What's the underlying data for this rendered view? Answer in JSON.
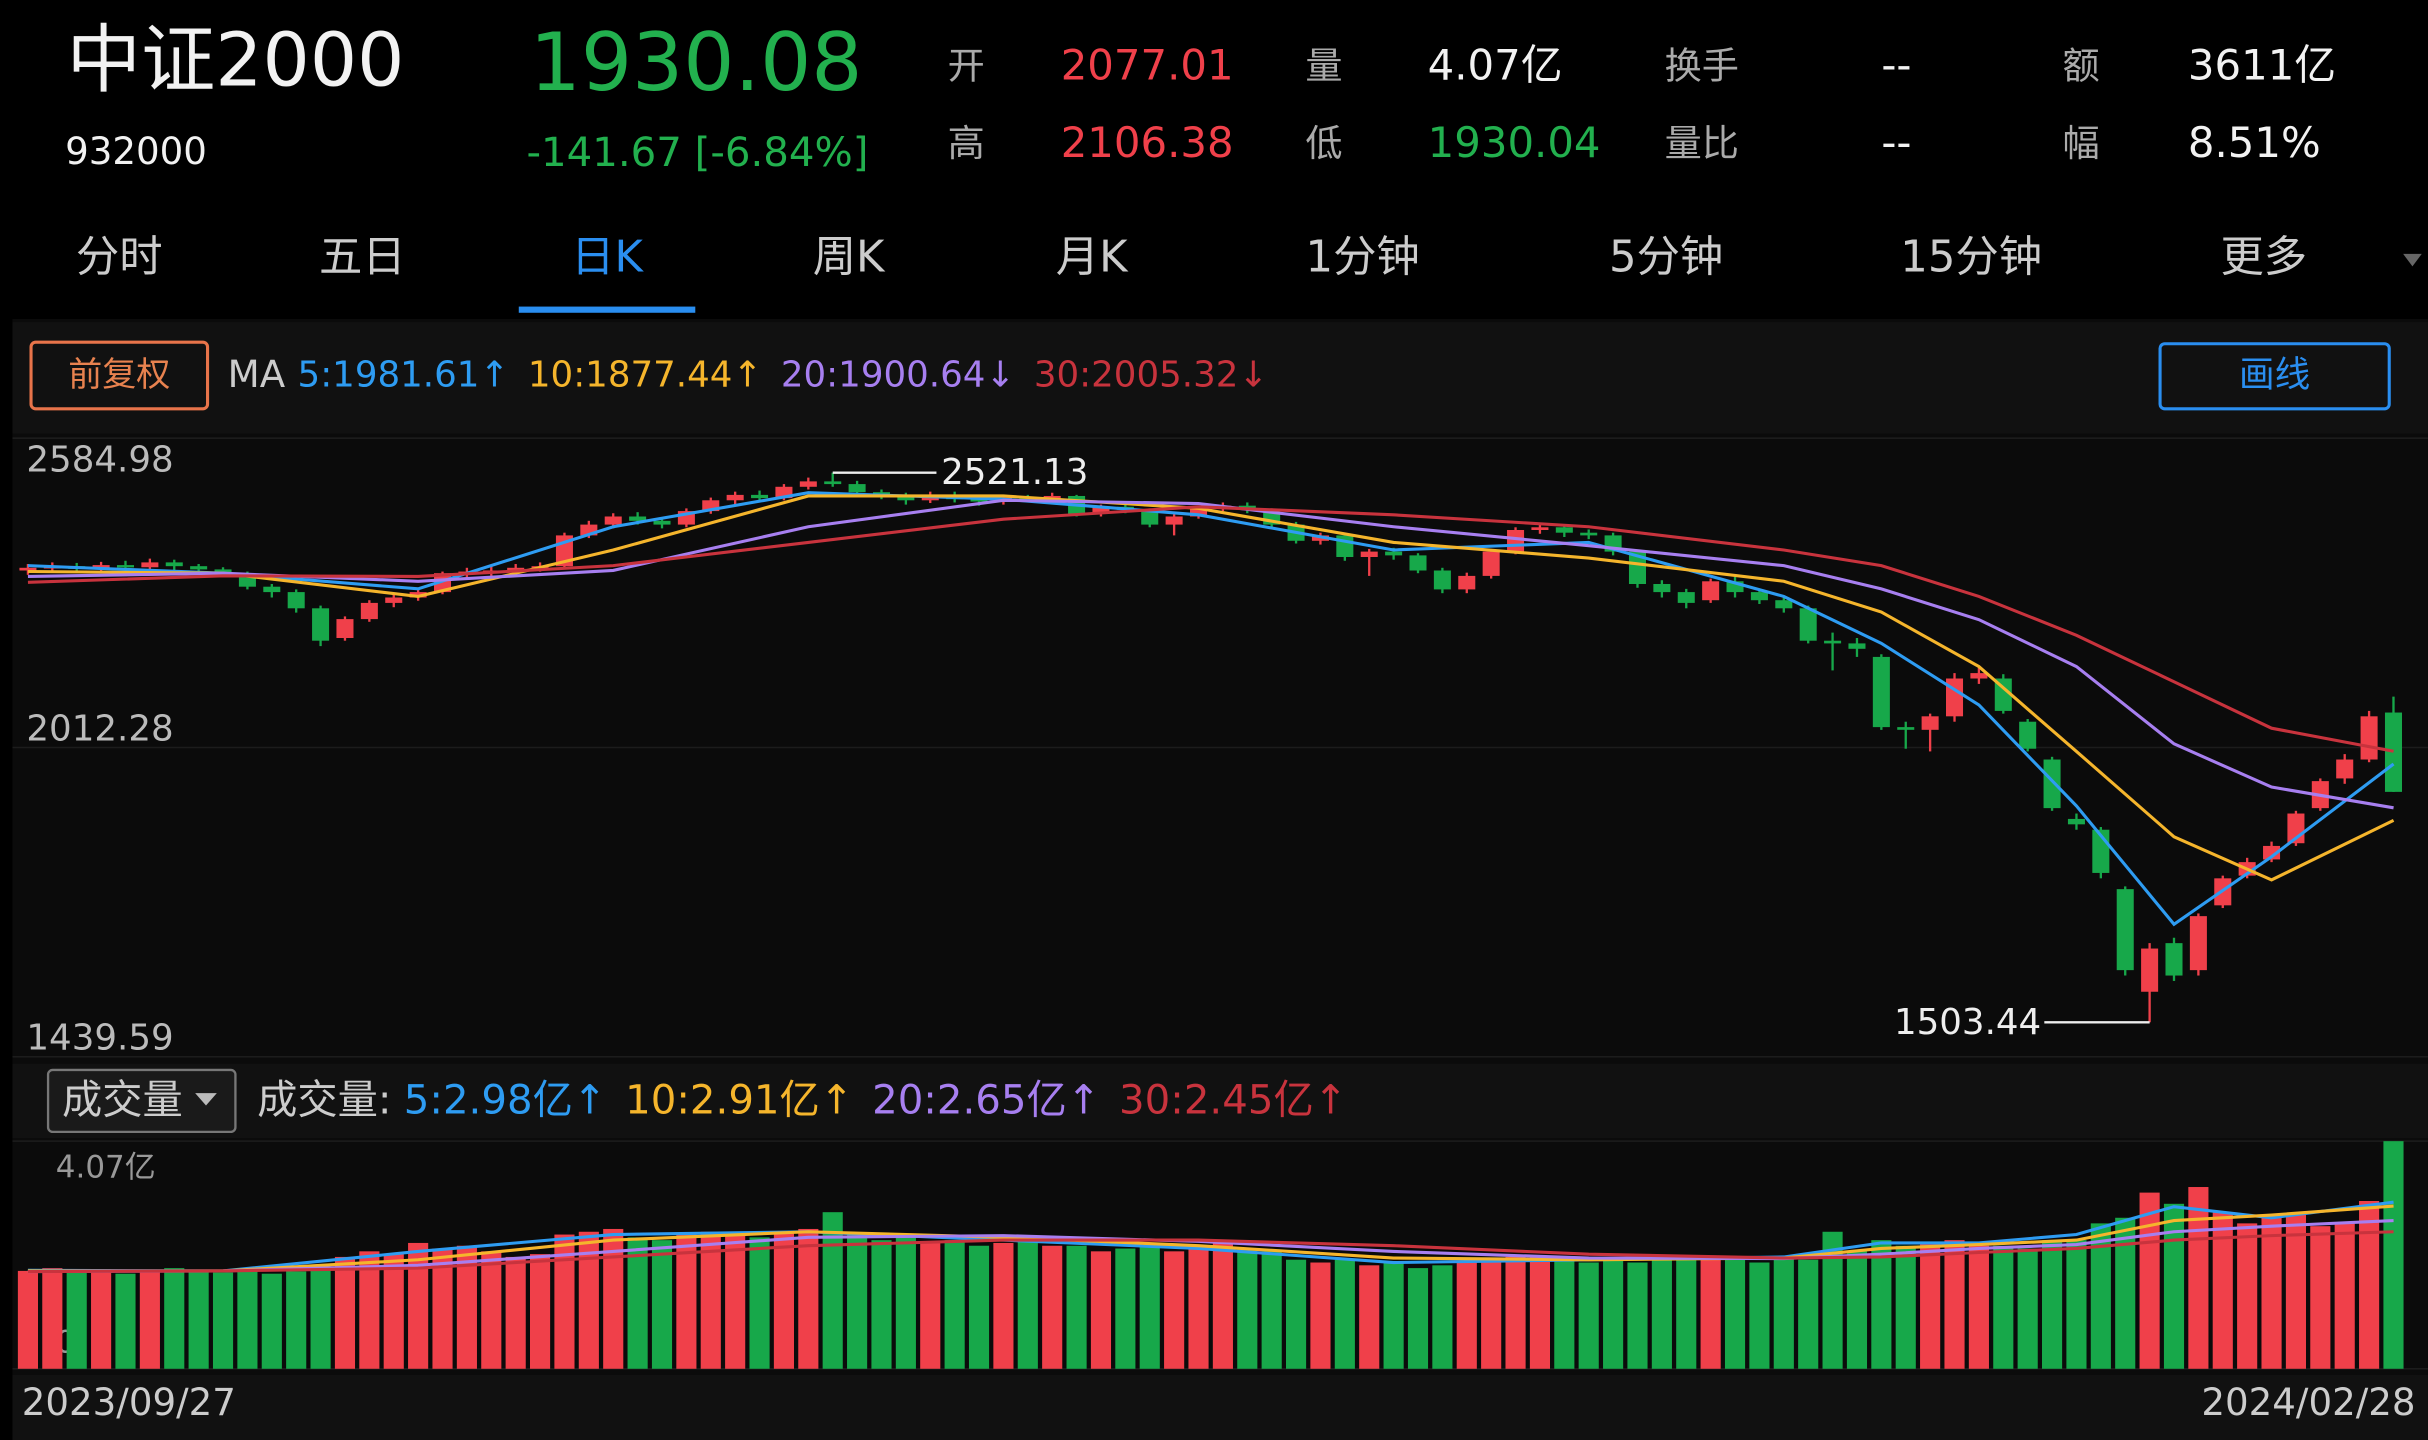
{
  "header": {
    "name": "中证2000",
    "code": "932000",
    "price": "1930.08",
    "change": "-141.67 [-6.84%]",
    "quote": [
      {
        "label": "开",
        "value": "2077.01",
        "color": "#f0404a"
      },
      {
        "label": "高",
        "value": "2106.38",
        "color": "#f0404a"
      },
      {
        "label": "量",
        "value": "4.07亿",
        "color": "#f2f2f2"
      },
      {
        "label": "低",
        "value": "1930.04",
        "color": "#22b04e"
      },
      {
        "label": "换手",
        "value": "--",
        "color": "#f2f2f2"
      },
      {
        "label": "量比",
        "value": "--",
        "color": "#f2f2f2"
      },
      {
        "label": "额",
        "value": "3611亿",
        "color": "#f2f2f2"
      },
      {
        "label": "幅",
        "value": "8.51%",
        "color": "#f2f2f2"
      }
    ]
  },
  "tabs": {
    "items": [
      "分时",
      "五日",
      "日K",
      "周K",
      "月K",
      "1分钟",
      "5分钟",
      "15分钟",
      "更多"
    ],
    "active": 2
  },
  "toolbar": {
    "adjust": "前复权",
    "ma_label": "MA",
    "draw_button": "画线"
  },
  "volume_toolbar": {
    "selector": "成交量",
    "label": "成交量:"
  },
  "chart_data": {
    "type": "candlestick",
    "up_color": "#f0404a",
    "down_color": "#17a84a",
    "start_date": "2023/09/27",
    "end_date": "2024/02/28",
    "ylim": [
      1439.59,
      2584.98
    ],
    "yticks": [
      2584.98,
      2012.28,
      1439.59
    ],
    "grid": true,
    "candles": {
      "open": [
        2340,
        2345,
        2348,
        2343,
        2350,
        2346,
        2355,
        2348,
        2342,
        2335,
        2310,
        2300,
        2270,
        2215,
        2250,
        2280,
        2290,
        2300,
        2335,
        2338,
        2340,
        2345,
        2348,
        2405,
        2425,
        2440,
        2432,
        2425,
        2450,
        2470,
        2480,
        2474,
        2495,
        2505,
        2500,
        2485,
        2478,
        2470,
        2480,
        2472,
        2468,
        2475,
        2472,
        2478,
        2445,
        2458,
        2452,
        2425,
        2440,
        2455,
        2460,
        2452,
        2425,
        2395,
        2405,
        2365,
        2375,
        2368,
        2340,
        2305,
        2330,
        2375,
        2415,
        2420,
        2410,
        2405,
        2375,
        2315,
        2300,
        2285,
        2320,
        2300,
        2285,
        2270,
        2210,
        2205,
        2180,
        2050,
        2045,
        2070,
        2140,
        2140,
        2060,
        1990,
        1880,
        1860,
        1750,
        1560,
        1650,
        1600,
        1720,
        1775,
        1805,
        1835,
        1900,
        1955,
        1990,
        2077.01
      ],
      "high": [
        2352,
        2355,
        2354,
        2356,
        2358,
        2362,
        2360,
        2352,
        2346,
        2338,
        2315,
        2305,
        2275,
        2255,
        2285,
        2296,
        2306,
        2338,
        2345,
        2348,
        2352,
        2355,
        2410,
        2432,
        2446,
        2448,
        2438,
        2455,
        2475,
        2486,
        2488,
        2500,
        2512,
        2521.13,
        2506,
        2490,
        2484,
        2486,
        2486,
        2478,
        2480,
        2480,
        2484,
        2480,
        2462,
        2464,
        2455,
        2444,
        2460,
        2466,
        2466,
        2455,
        2430,
        2410,
        2408,
        2380,
        2382,
        2372,
        2345,
        2336,
        2380,
        2420,
        2428,
        2425,
        2416,
        2410,
        2378,
        2322,
        2306,
        2325,
        2328,
        2306,
        2292,
        2275,
        2225,
        2215,
        2185,
        2060,
        2075,
        2150,
        2160,
        2148,
        2065,
        1995,
        1890,
        1865,
        1755,
        1650,
        1660,
        1705,
        1775,
        1808,
        1838,
        1895,
        1955,
        2000,
        2080,
        2106.38
      ],
      "low": [
        2332,
        2338,
        2336,
        2338,
        2340,
        2342,
        2340,
        2334,
        2328,
        2305,
        2290,
        2262,
        2200,
        2210,
        2245,
        2272,
        2284,
        2296,
        2328,
        2330,
        2332,
        2338,
        2345,
        2400,
        2418,
        2425,
        2418,
        2420,
        2445,
        2462,
        2468,
        2470,
        2490,
        2495,
        2480,
        2472,
        2462,
        2465,
        2466,
        2460,
        2462,
        2466,
        2468,
        2440,
        2440,
        2446,
        2420,
        2405,
        2436,
        2450,
        2446,
        2420,
        2390,
        2388,
        2358,
        2330,
        2360,
        2335,
        2298,
        2298,
        2325,
        2370,
        2408,
        2402,
        2398,
        2368,
        2308,
        2290,
        2270,
        2280,
        2290,
        2278,
        2262,
        2205,
        2155,
        2180,
        2045,
        2010,
        2005,
        2060,
        2130,
        2075,
        2005,
        1895,
        1860,
        1770,
        1590,
        1503.44,
        1580,
        1590,
        1715,
        1770,
        1800,
        1830,
        1895,
        1945,
        1985,
        1930.04
      ],
      "close": [
        2345,
        2348,
        2343,
        2350,
        2346,
        2355,
        2348,
        2342,
        2335,
        2310,
        2300,
        2270,
        2210,
        2250,
        2280,
        2290,
        2300,
        2335,
        2338,
        2340,
        2345,
        2348,
        2405,
        2425,
        2440,
        2432,
        2425,
        2450,
        2470,
        2480,
        2474,
        2495,
        2505,
        2500,
        2485,
        2478,
        2470,
        2480,
        2472,
        2468,
        2475,
        2472,
        2478,
        2445,
        2458,
        2452,
        2425,
        2440,
        2455,
        2460,
        2452,
        2425,
        2395,
        2405,
        2365,
        2375,
        2368,
        2340,
        2305,
        2330,
        2375,
        2415,
        2420,
        2410,
        2405,
        2375,
        2315,
        2300,
        2280,
        2320,
        2300,
        2285,
        2270,
        2210,
        2205,
        2195,
        2050,
        2045,
        2070,
        2140,
        2150,
        2080,
        2010,
        1900,
        1870,
        1780,
        1600,
        1640,
        1590,
        1700,
        1770,
        1800,
        1830,
        1890,
        1950,
        1990,
        2070,
        1930.08
      ]
    },
    "ma_lines": {
      "x": [
        0,
        8,
        16,
        24,
        32,
        40,
        48,
        56,
        64,
        72,
        76,
        80,
        84,
        88,
        92,
        97
      ],
      "series": [
        {
          "name": "5:1981.61↑",
          "color": "#2e9cf2",
          "values": [
            2349,
            2335,
            2306,
            2421,
            2484,
            2472,
            2443,
            2378,
            2392,
            2292,
            2205,
            2091,
            1904,
            1685,
            1810,
            1981.61
          ]
        },
        {
          "name": "10:1877.44↑",
          "color": "#f5b52c",
          "values": [
            2338,
            2335,
            2292,
            2378,
            2478,
            2478,
            2455,
            2392,
            2363,
            2320,
            2263,
            2162,
            2005,
            1847,
            1767,
            1877.44
          ]
        },
        {
          "name": "20:1900.64↓",
          "color": "#a77ff0",
          "values": [
            2329,
            2335,
            2320,
            2340,
            2421,
            2470,
            2464,
            2421,
            2386,
            2349,
            2306,
            2249,
            2162,
            2019,
            1939,
            1900.64
          ]
        },
        {
          "name": "30:2005.32↓",
          "color": "#c8333d",
          "values": [
            2318,
            2330,
            2329,
            2349,
            2392,
            2435,
            2458,
            2443,
            2421,
            2378,
            2349,
            2292,
            2220,
            2134,
            2048,
            2005.32
          ]
        }
      ]
    },
    "volume": {
      "ylim": [
        0,
        4.07
      ],
      "yticks": [
        {
          "value": 4.07,
          "label": "4.07亿"
        },
        0
      ],
      "values": [
        1.75,
        1.8,
        1.72,
        1.78,
        1.7,
        1.76,
        1.8,
        1.74,
        1.72,
        1.76,
        1.7,
        1.74,
        1.85,
        2.0,
        2.1,
        2.05,
        2.25,
        2.15,
        2.2,
        2.1,
        2.0,
        2.05,
        2.4,
        2.45,
        2.5,
        2.35,
        2.3,
        2.4,
        2.45,
        2.4,
        2.35,
        2.45,
        2.5,
        2.8,
        2.4,
        2.3,
        2.35,
        2.25,
        2.3,
        2.2,
        2.25,
        2.3,
        2.2,
        2.2,
        2.1,
        2.15,
        2.2,
        2.1,
        2.2,
        2.25,
        2.15,
        2.1,
        1.95,
        1.9,
        1.95,
        1.85,
        1.9,
        1.8,
        1.85,
        1.9,
        1.95,
        2.0,
        2.0,
        1.95,
        1.9,
        1.95,
        1.9,
        1.95,
        2.0,
        1.95,
        2.0,
        1.9,
        2.0,
        1.95,
        2.45,
        2.1,
        2.3,
        2.2,
        2.25,
        2.3,
        2.2,
        2.2,
        2.15,
        2.3,
        2.3,
        2.6,
        2.7,
        3.15,
        2.95,
        3.25,
        2.8,
        2.6,
        2.7,
        2.75,
        2.55,
        2.6,
        3.0,
        4.07
      ],
      "ma_lines": {
        "x": [
          0,
          8,
          16,
          24,
          32,
          40,
          48,
          56,
          64,
          72,
          76,
          80,
          84,
          88,
          92,
          97
        ],
        "series": [
          {
            "name": "5:2.98亿↑",
            "color": "#2e9cf2",
            "values": [
              1.76,
              1.75,
              2.1,
              2.4,
              2.45,
              2.3,
              2.15,
              1.9,
              1.95,
              2.0,
              2.25,
              2.25,
              2.4,
              2.9,
              2.7,
              2.98
            ]
          },
          {
            "name": "10:2.91亿↑",
            "color": "#f5b52c",
            "values": [
              1.75,
              1.75,
              1.95,
              2.3,
              2.45,
              2.35,
              2.2,
              1.98,
              1.95,
              1.98,
              2.15,
              2.22,
              2.3,
              2.65,
              2.75,
              2.91
            ]
          },
          {
            "name": "20:2.65亿↑",
            "color": "#a77ff0",
            "values": [
              1.74,
              1.75,
              1.85,
              2.1,
              2.35,
              2.38,
              2.28,
              2.1,
              1.98,
              1.97,
              2.05,
              2.15,
              2.22,
              2.45,
              2.55,
              2.65
            ]
          },
          {
            "name": "30:2.45亿↑",
            "color": "#c8333d",
            "values": [
              1.74,
              1.75,
              1.8,
              2.0,
              2.2,
              2.3,
              2.3,
              2.2,
              2.05,
              1.98,
              2.0,
              2.08,
              2.15,
              2.3,
              2.38,
              2.45
            ]
          }
        ]
      }
    }
  }
}
